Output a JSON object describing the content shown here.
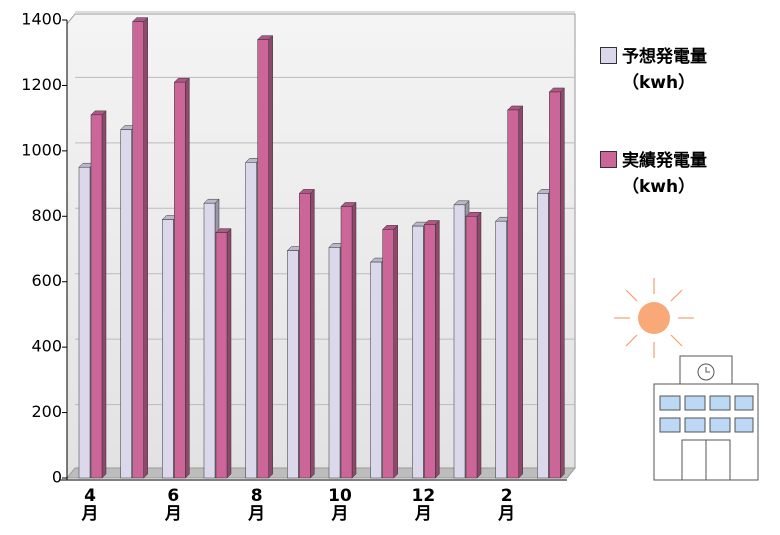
{
  "chart_data": {
    "type": "bar3d",
    "categories": [
      "4\n月",
      null,
      "6\n月",
      null,
      "8\n月",
      null,
      "10\n月",
      null,
      "12\n月",
      null,
      "2\n月",
      null
    ],
    "series": [
      {
        "name": "予想発電量\n（kwh）",
        "color": "#dcd8ec",
        "values": [
          950,
          1065,
          790,
          840,
          965,
          695,
          705,
          660,
          770,
          835,
          785,
          870
        ]
      },
      {
        "name": "実績発電量\n（kwh）",
        "color": "#cc6699",
        "values": [
          1110,
          1395,
          1210,
          750,
          1340,
          870,
          830,
          760,
          775,
          800,
          1125,
          1180
        ]
      }
    ],
    "ylim": [
      0,
      1400
    ],
    "yticks": [
      0,
      200,
      400,
      600,
      800,
      1000,
      1200,
      1400
    ],
    "grid": true
  }
}
